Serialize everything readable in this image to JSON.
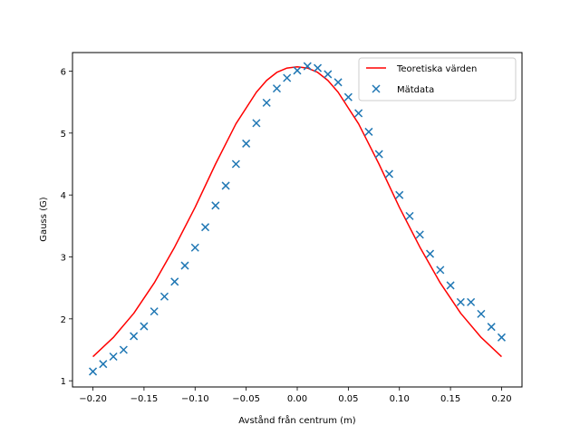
{
  "chart_data": {
    "type": "line",
    "title": "",
    "xlabel": "Avstånd från centrum (m)",
    "ylabel": "Gauss (G)",
    "xlim": [
      -0.22,
      0.22
    ],
    "ylim": [
      0.9,
      6.3
    ],
    "x_ticks": [
      -0.2,
      -0.15,
      -0.1,
      -0.05,
      0.0,
      0.05,
      0.1,
      0.15,
      0.2
    ],
    "x_tick_labels": [
      "−0.20",
      "−0.15",
      "−0.10",
      "−0.05",
      "0.00",
      "0.05",
      "0.10",
      "0.15",
      "0.20"
    ],
    "y_ticks": [
      1,
      2,
      3,
      4,
      5,
      6
    ],
    "y_tick_labels": [
      "1",
      "2",
      "3",
      "4",
      "5",
      "6"
    ],
    "grid": false,
    "legend_position": "top-right",
    "series": [
      {
        "name": "Teoretiska värden",
        "kind": "line",
        "color": "#ff0000",
        "x": [
          -0.2,
          -0.18,
          -0.16,
          -0.14,
          -0.12,
          -0.1,
          -0.08,
          -0.06,
          -0.04,
          -0.03,
          -0.02,
          -0.01,
          0.0,
          0.01,
          0.02,
          0.03,
          0.04,
          0.06,
          0.08,
          0.1,
          0.12,
          0.14,
          0.16,
          0.18,
          0.2
        ],
        "y": [
          1.39,
          1.7,
          2.09,
          2.58,
          3.16,
          3.8,
          4.5,
          5.15,
          5.66,
          5.85,
          5.98,
          6.05,
          6.07,
          6.05,
          5.98,
          5.85,
          5.66,
          5.15,
          4.5,
          3.8,
          3.16,
          2.58,
          2.09,
          1.7,
          1.39
        ]
      },
      {
        "name": "Mätdata",
        "kind": "scatter",
        "color": "#1f77b4",
        "x": [
          -0.2,
          -0.19,
          -0.18,
          -0.17,
          -0.16,
          -0.15,
          -0.14,
          -0.13,
          -0.12,
          -0.11,
          -0.1,
          -0.09,
          -0.08,
          -0.07,
          -0.06,
          -0.05,
          -0.04,
          -0.03,
          -0.02,
          -0.01,
          0.0,
          0.01,
          0.02,
          0.03,
          0.04,
          0.05,
          0.06,
          0.07,
          0.08,
          0.09,
          0.1,
          0.11,
          0.12,
          0.13,
          0.14,
          0.15,
          0.16,
          0.17,
          0.18,
          0.19,
          0.2
        ],
        "y": [
          1.15,
          1.27,
          1.39,
          1.5,
          1.72,
          1.88,
          2.12,
          2.36,
          2.6,
          2.86,
          3.15,
          3.48,
          3.83,
          4.15,
          4.5,
          4.83,
          5.16,
          5.49,
          5.72,
          5.89,
          6.01,
          6.08,
          6.05,
          5.95,
          5.82,
          5.58,
          5.32,
          5.02,
          4.66,
          4.34,
          4.0,
          3.66,
          3.36,
          3.05,
          2.79,
          2.54,
          2.27,
          2.27,
          2.08,
          1.87,
          1.7
        ]
      }
    ]
  }
}
